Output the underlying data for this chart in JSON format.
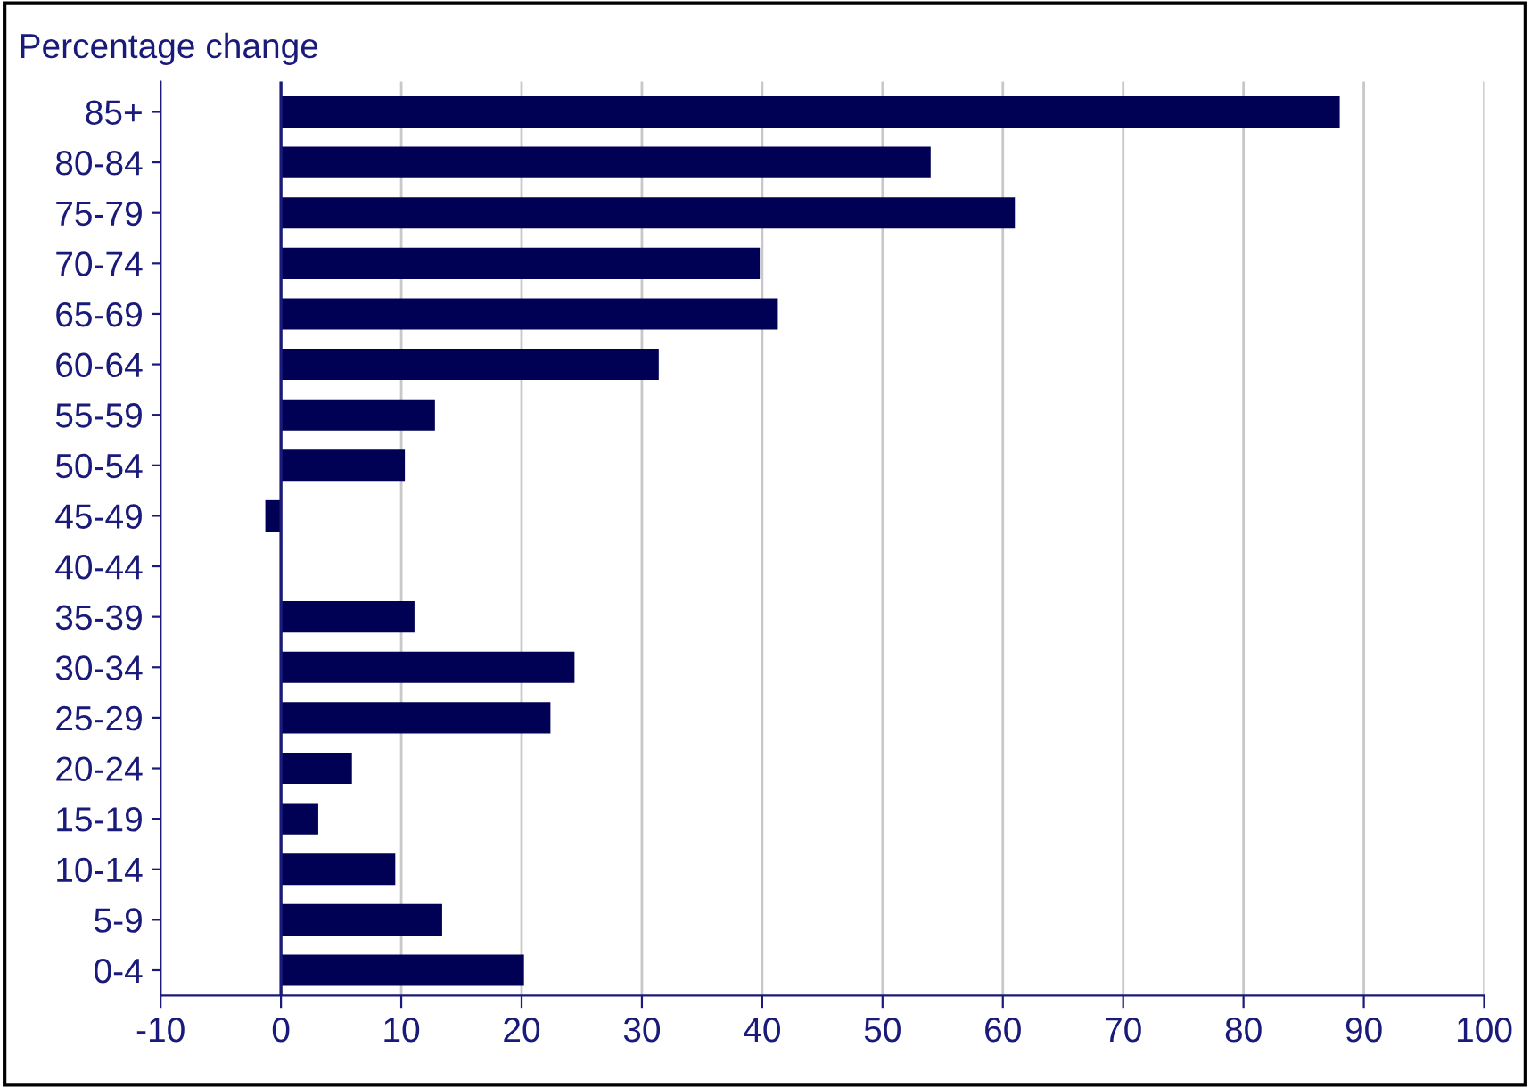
{
  "chart_data": {
    "type": "bar",
    "orientation": "horizontal",
    "title": "Percentage change",
    "categories": [
      "85+",
      "80-84",
      "75-79",
      "70-74",
      "65-69",
      "60-64",
      "55-59",
      "50-54",
      "45-49",
      "40-44",
      "35-39",
      "30-34",
      "25-29",
      "20-24",
      "15-19",
      "10-14",
      "5-9",
      "0-4"
    ],
    "values": [
      88,
      54,
      61,
      39.8,
      41.3,
      31.4,
      12.8,
      10.3,
      -1.3,
      0,
      11.1,
      24.4,
      22.4,
      5.9,
      3.1,
      9.5,
      13.4,
      20.2
    ],
    "color": "#000055",
    "xlim": [
      -10,
      100
    ],
    "xticks": [
      -10,
      0,
      10,
      20,
      30,
      40,
      50,
      60,
      70,
      80,
      90,
      100
    ],
    "grid": "x",
    "ref_lines": [
      {
        "axis": "x",
        "value": 0,
        "color": "#1a1a7a"
      }
    ]
  }
}
